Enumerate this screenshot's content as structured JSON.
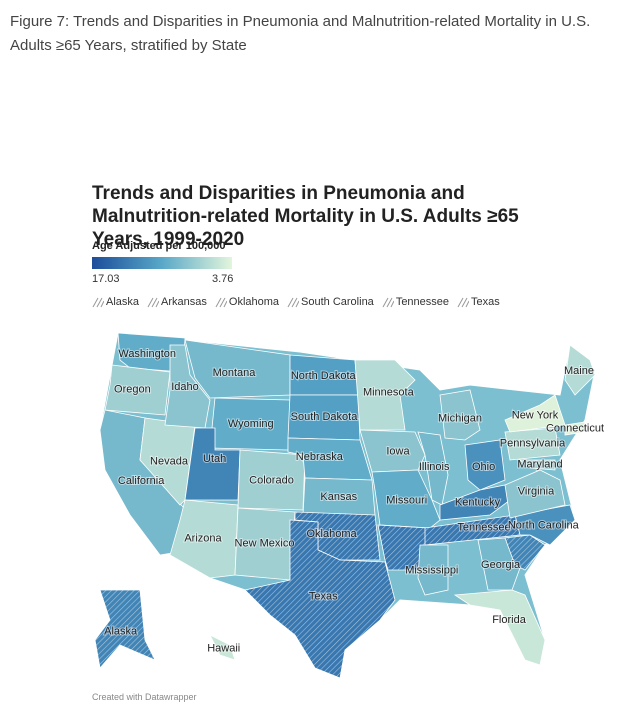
{
  "caption": "Figure 7: Trends and Disparities in  Pneumonia and Malnutrition-related Mortality in U.S. Adults ≥65 Years, stratified by State",
  "chart_data": {
    "type": "choropleth",
    "title": "Trends and Disparities in Pneumonia and Malnutrition-related Mortality in U.S. Adults ≥65 Years, 1999-2020",
    "legend_title": "Age Adjusted per 100,000",
    "scale": [
      17.03,
      3.76
    ],
    "hatched_legend": [
      "Alaska",
      "Arkansas",
      "Oklahoma",
      "South Carolina",
      "Tennessee",
      "Texas"
    ],
    "states": [
      {
        "name": "Washington",
        "value": 10
      },
      {
        "name": "Oregon",
        "value": 7
      },
      {
        "name": "California",
        "value": 9
      },
      {
        "name": "Nevada",
        "value": 6
      },
      {
        "name": "Idaho",
        "value": 8
      },
      {
        "name": "Montana",
        "value": 9
      },
      {
        "name": "Wyoming",
        "value": 10
      },
      {
        "name": "Utah",
        "value": 13
      },
      {
        "name": "Colorado",
        "value": 7
      },
      {
        "name": "Arizona",
        "value": 6
      },
      {
        "name": "New Mexico",
        "value": 7
      },
      {
        "name": "North Dakota",
        "value": 11
      },
      {
        "name": "South Dakota",
        "value": 11
      },
      {
        "name": "Nebraska",
        "value": 10
      },
      {
        "name": "Kansas",
        "value": 9
      },
      {
        "name": "Oklahoma",
        "value": 14,
        "hatched": true
      },
      {
        "name": "Texas",
        "value": 14,
        "hatched": true
      },
      {
        "name": "Minnesota",
        "value": 6
      },
      {
        "name": "Iowa",
        "value": 8
      },
      {
        "name": "Missouri",
        "value": 10
      },
      {
        "name": null,
        "value": 14,
        "hatched": true
      },
      {
        "name": "Illinois",
        "value": 9
      },
      {
        "name": "Michigan",
        "value": 8
      },
      {
        "name": "Ohio",
        "value": 12
      },
      {
        "name": "Kentucky",
        "value": 13
      },
      {
        "name": "Tennessee",
        "value": 14,
        "hatched": true
      },
      {
        "name": "Mississippi",
        "value": 9
      },
      {
        "name": "Georgia",
        "value": 9
      },
      {
        "name": "Florida",
        "value": 5
      },
      {
        "name": null,
        "value": 13,
        "hatched": true
      },
      {
        "name": "North Carolina",
        "value": 12
      },
      {
        "name": "Virginia",
        "value": 8
      },
      {
        "name": "Maryland",
        "value": 7
      },
      {
        "name": "Pennsylvania",
        "value": 6
      },
      {
        "name": "New York",
        "value": 4
      },
      {
        "name": "Connecticut",
        "value": 4
      },
      {
        "name": "Maine",
        "value": 6
      },
      {
        "name": "Alaska",
        "value": 13,
        "hatched": true
      },
      {
        "name": "Hawaii",
        "value": 5
      }
    ],
    "footer": "Created with Datawrapper"
  }
}
